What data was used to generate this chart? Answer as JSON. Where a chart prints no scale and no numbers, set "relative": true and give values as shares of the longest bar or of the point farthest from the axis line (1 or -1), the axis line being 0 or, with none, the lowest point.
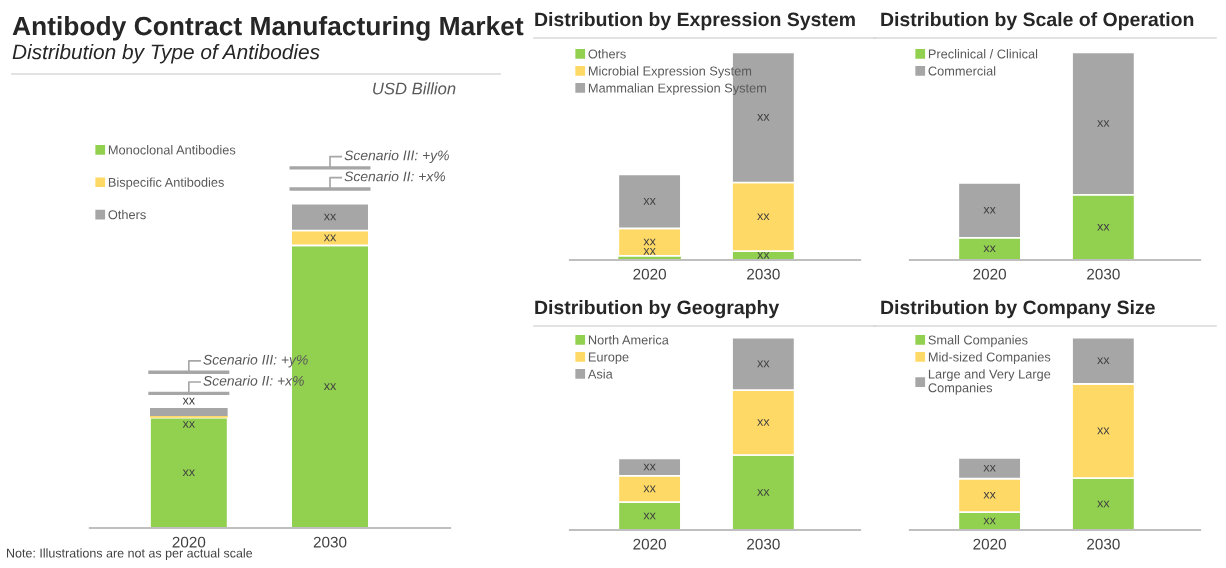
{
  "chart_data": [
    {
      "type": "bar",
      "title": "Antibody Contract Manufacturing Market",
      "subtitle": "Distribution by Type of Antibodies",
      "categories": [
        "2020",
        "2030"
      ],
      "stacked": true,
      "relative": true,
      "legend": "top left",
      "series": [
        {
          "name": "Monoclonal Antibodies",
          "color": "#92d050",
          "values": [
            0.34,
            0.871
          ]
        },
        {
          "name": "Bispecific Antibodies",
          "color": "#ffd966",
          "values": [
            0.005,
            0.046
          ]
        },
        {
          "name": "Others",
          "color": "#a6a6a6",
          "values": [
            0.025,
            0.083
          ]
        }
      ],
      "annotations": [
        "USD Billion",
        "Scenario III: +y%",
        "Scenario II: +x%",
        "Scenario III: +y%",
        "Scenario II: +x%",
        "Note: Illustrations are not as per actual scale",
        "xx",
        "xx",
        "xx",
        "xx",
        "xx",
        "xx"
      ]
    },
    {
      "type": "bar",
      "title": "Distribution by Expression System",
      "categories": [
        "2020",
        "2030"
      ],
      "stacked": true,
      "relative": true,
      "legend": "top left",
      "series": [
        {
          "name": "Others",
          "color": "#92d050",
          "values": [
            0.02,
            0.043
          ]
        },
        {
          "name": "Microbial Expression System",
          "color": "#ffd966",
          "values": [
            0.132,
            0.33
          ]
        },
        {
          "name": "Mammalian Expression System",
          "color": "#a6a6a6",
          "values": [
            0.26,
            0.627
          ]
        }
      ],
      "annotations": [
        "xx",
        "xx",
        "xx",
        "xx",
        "xx",
        "xx"
      ]
    },
    {
      "type": "bar",
      "title": "Distribution by Scale of Operation",
      "categories": [
        "2020",
        "2030"
      ],
      "stacked": true,
      "relative": true,
      "legend": "top left",
      "series": [
        {
          "name": "Preclinical / Clinical",
          "color": "#92d050",
          "values": [
            0.107,
            0.314
          ]
        },
        {
          "name": "Commercial",
          "color": "#a6a6a6",
          "values": [
            0.264,
            0.686
          ]
        }
      ],
      "annotations": [
        "xx",
        "xx",
        "xx",
        "xx"
      ]
    },
    {
      "type": "bar",
      "title": "Distribution by Geography",
      "categories": [
        "2020",
        "2030"
      ],
      "stacked": true,
      "relative": true,
      "legend": "top left",
      "series": [
        {
          "name": "North America",
          "color": "#92d050",
          "values": [
            0.145,
            0.39
          ]
        },
        {
          "name": "Europe",
          "color": "#ffd966",
          "values": [
            0.137,
            0.337
          ]
        },
        {
          "name": "Asia",
          "color": "#a6a6a6",
          "values": [
            0.09,
            0.273
          ]
        }
      ],
      "annotations": [
        "xx",
        "xx",
        "xx",
        "xx",
        "xx",
        "xx"
      ]
    },
    {
      "type": "bar",
      "title": "Distribution by Company Size",
      "categories": [
        "2020",
        "2030"
      ],
      "stacked": true,
      "relative": true,
      "legend": "top left",
      "series": [
        {
          "name": "Small Companies",
          "color": "#92d050",
          "values": [
            0.093,
            0.27
          ]
        },
        {
          "name": "Mid-sized Companies",
          "color": "#ffd966",
          "values": [
            0.174,
            0.49
          ]
        },
        {
          "name": "Large and Very Large Companies",
          "color": "#a6a6a6",
          "values": [
            0.108,
            0.24
          ]
        }
      ],
      "annotations": [
        "xx",
        "xx",
        "xx",
        "xx",
        "xx",
        "xx"
      ]
    }
  ]
}
